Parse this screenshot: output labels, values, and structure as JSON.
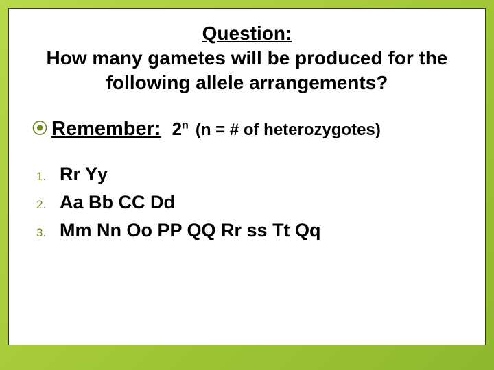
{
  "colors": {
    "background_gradient_start": "#b8d94a",
    "background_gradient_mid": "#a8cc3a",
    "background_gradient_end": "#8fb82e",
    "panel_bg": "#ffffff",
    "panel_border": "#333333",
    "text_color": "#000000",
    "accent_color": "#6a8a1f"
  },
  "typography": {
    "family": "Arial",
    "title_fontsize": 28,
    "remember_fontsize": 29,
    "formula_fontsize": 26,
    "note_fontsize": 24,
    "list_item_fontsize": 27,
    "list_number_fontsize": 17
  },
  "title": {
    "label": "Question:",
    "text": "How many gametes will be produced for the following allele arrangements?"
  },
  "remember": {
    "bullet_glyph": "⦿",
    "label": "Remember:",
    "formula_base": "2",
    "formula_exp": "n",
    "note": "(n = # of heterozygotes)"
  },
  "list": {
    "items": [
      {
        "num": "1.",
        "text": "Rr Yy"
      },
      {
        "num": "2.",
        "text": "Aa Bb CC Dd"
      },
      {
        "num": "3.",
        "text": "Mm Nn Oo PP QQ Rr ss Tt Qq"
      }
    ]
  }
}
